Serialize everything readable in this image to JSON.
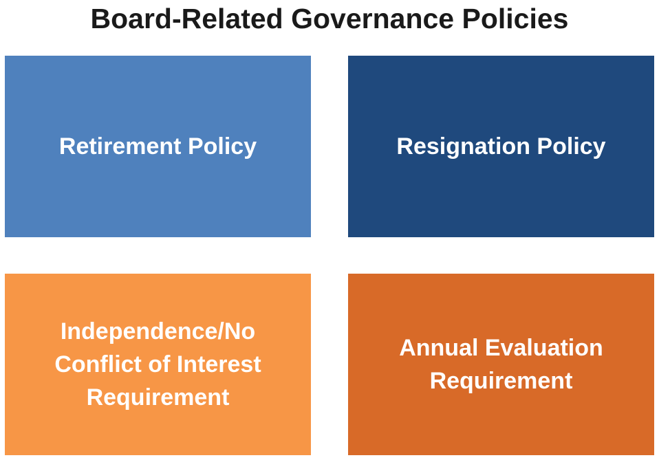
{
  "title": "Board-Related Governance Policies",
  "boxes": [
    {
      "label": "Retirement Policy",
      "color": "#4F81BD"
    },
    {
      "label": "Resignation Policy",
      "color": "#1F497D"
    },
    {
      "label": "Independence/No Conflict of Interest Requirement",
      "color": "#F79646"
    },
    {
      "label": "Annual Evaluation Requirement",
      "color": "#D86A28"
    }
  ]
}
